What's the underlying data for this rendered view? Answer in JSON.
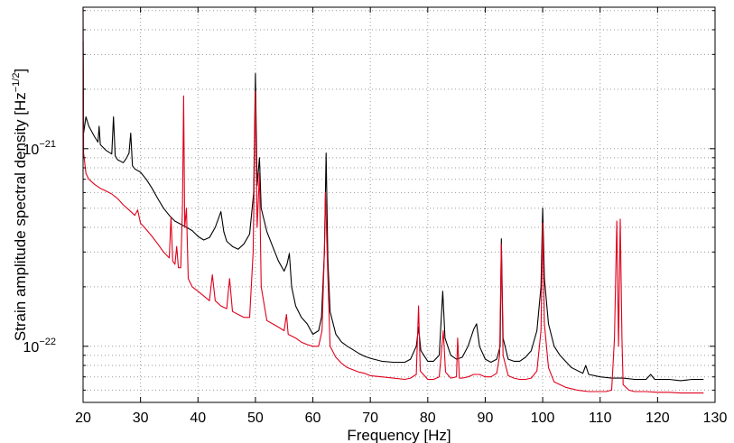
{
  "chart_data": {
    "type": "line",
    "title": "",
    "xlabel": "Frequency [Hz]",
    "ylabel_main": "Strain amplitude spectral density [Hz",
    "ylabel_exp": "−1/2",
    "ylabel_close": "]",
    "yscale": "log",
    "xlim": [
      20,
      130
    ],
    "ylim": [
      5.2e-23,
      5.2e-21
    ],
    "grid": true,
    "legend": "none",
    "x_ticks": [
      {
        "value": 20,
        "label": "20"
      },
      {
        "value": 30,
        "label": "30"
      },
      {
        "value": 40,
        "label": "40"
      },
      {
        "value": 50,
        "label": "50"
      },
      {
        "value": 60,
        "label": "60"
      },
      {
        "value": 70,
        "label": "70"
      },
      {
        "value": 80,
        "label": "80"
      },
      {
        "value": 90,
        "label": "90"
      },
      {
        "value": 100,
        "label": "100"
      },
      {
        "value": 110,
        "label": "110"
      },
      {
        "value": 120,
        "label": "120"
      },
      {
        "value": 130,
        "label": "130"
      }
    ],
    "y_ticks": [
      {
        "value": 1e-22,
        "base": "10",
        "exp": "−22"
      },
      {
        "value": 1e-21,
        "base": "10",
        "exp": "−21"
      }
    ],
    "series": [
      {
        "color": "#000000",
        "points": [
          [
            20.0,
            3.5e-21
          ],
          [
            20.1,
            1.2e-21
          ],
          [
            20.5,
            1.45e-21
          ],
          [
            21,
            1.3e-21
          ],
          [
            22,
            1.15e-21
          ],
          [
            22.6,
            1.08e-21
          ],
          [
            22.8,
            1.3e-21
          ],
          [
            23,
            1.05e-21
          ],
          [
            24,
            9.8e-22
          ],
          [
            25,
            9.4e-22
          ],
          [
            25.3,
            1.45e-21
          ],
          [
            25.6,
            9.2e-22
          ],
          [
            26,
            8.8e-22
          ],
          [
            27,
            8.5e-22
          ],
          [
            27.5,
            8.9e-22
          ],
          [
            28,
            9.5e-22
          ],
          [
            28.3,
            1.2e-21
          ],
          [
            28.6,
            8.2e-22
          ],
          [
            29,
            7.9e-22
          ],
          [
            30,
            7.6e-22
          ],
          [
            31,
            7e-22
          ],
          [
            32,
            6.3e-22
          ],
          [
            33,
            5.6e-22
          ],
          [
            34,
            5e-22
          ],
          [
            35,
            4.6e-22
          ],
          [
            36,
            4.3e-22
          ],
          [
            37,
            4.15e-22
          ],
          [
            38,
            4e-22
          ],
          [
            39,
            3.85e-22
          ],
          [
            40,
            3.6e-22
          ],
          [
            41,
            3.45e-22
          ],
          [
            42,
            3.55e-22
          ],
          [
            43,
            4e-22
          ],
          [
            44,
            4.8e-22
          ],
          [
            44.5,
            3.8e-22
          ],
          [
            45,
            3.4e-22
          ],
          [
            46,
            3.2e-22
          ],
          [
            47,
            3.1e-22
          ],
          [
            48,
            3.3e-22
          ],
          [
            49,
            3.7e-22
          ],
          [
            49.7,
            6e-22
          ],
          [
            50.0,
            2.4e-21
          ],
          [
            50.3,
            6.5e-22
          ],
          [
            50.7,
            9e-22
          ],
          [
            51,
            5e-22
          ],
          [
            52,
            3.8e-22
          ],
          [
            53,
            3.2e-22
          ],
          [
            54,
            2.7e-22
          ],
          [
            55,
            2.4e-22
          ],
          [
            55.5,
            2.6e-22
          ],
          [
            55.9,
            2.95e-22
          ],
          [
            56.3,
            2e-22
          ],
          [
            57,
            1.6e-22
          ],
          [
            58,
            1.4e-22
          ],
          [
            59,
            1.3e-22
          ],
          [
            60,
            1.15e-22
          ],
          [
            61,
            1.2e-22
          ],
          [
            61.5,
            1.4e-22
          ],
          [
            62.0,
            3e-22
          ],
          [
            62.3,
            9.5e-22
          ],
          [
            62.6,
            2.8e-22
          ],
          [
            63,
            1.5e-22
          ],
          [
            64,
            1.15e-22
          ],
          [
            65,
            1.05e-22
          ],
          [
            66,
            1e-22
          ],
          [
            67,
            9.6e-23
          ],
          [
            68,
            9.2e-23
          ],
          [
            69,
            8.9e-23
          ],
          [
            70,
            8.7e-23
          ],
          [
            72,
            8.4e-23
          ],
          [
            74,
            8.3e-23
          ],
          [
            76,
            8.3e-23
          ],
          [
            77,
            8.6e-23
          ],
          [
            78,
            1e-22
          ],
          [
            78.4,
            1.25e-22
          ],
          [
            78.8,
            9.5e-23
          ],
          [
            80,
            8.4e-23
          ],
          [
            81,
            8.4e-23
          ],
          [
            82,
            9e-23
          ],
          [
            82.6,
            1.9e-22
          ],
          [
            83.0,
            1.1e-22
          ],
          [
            84,
            9e-23
          ],
          [
            85,
            8.6e-23
          ],
          [
            86,
            8.8e-23
          ],
          [
            87,
            1e-22
          ],
          [
            88,
            1.22e-22
          ],
          [
            88.5,
            1.3e-22
          ],
          [
            89,
            1e-22
          ],
          [
            90,
            8.6e-23
          ],
          [
            91,
            8.3e-23
          ],
          [
            92,
            8.6e-23
          ],
          [
            92.6,
            1e-22
          ],
          [
            92.8,
            3.5e-22
          ],
          [
            93.1,
            1.1e-22
          ],
          [
            94,
            8.6e-23
          ],
          [
            95,
            8.4e-23
          ],
          [
            96,
            8.4e-23
          ],
          [
            97,
            8.8e-23
          ],
          [
            98,
            9.5e-23
          ],
          [
            99,
            1.2e-22
          ],
          [
            99.7,
            2e-22
          ],
          [
            100.0,
            5e-22
          ],
          [
            100.3,
            2.2e-22
          ],
          [
            101,
            1.3e-22
          ],
          [
            102,
            1e-22
          ],
          [
            103,
            9e-23
          ],
          [
            105,
            7.8e-23
          ],
          [
            107,
            7.3e-23
          ],
          [
            107.5,
            8e-23
          ],
          [
            108,
            7.2e-23
          ],
          [
            110,
            7e-23
          ],
          [
            112,
            6.9e-23
          ],
          [
            114,
            6.9e-23
          ],
          [
            116,
            6.8e-23
          ],
          [
            118,
            6.8e-23
          ],
          [
            118.8,
            7.2e-23
          ],
          [
            119.5,
            6.8e-23
          ],
          [
            122,
            6.8e-23
          ],
          [
            124,
            6.7e-23
          ],
          [
            126,
            6.8e-23
          ],
          [
            128,
            6.8e-23
          ]
        ]
      },
      {
        "color": "#e0001b",
        "points": [
          [
            20.0,
            5.2e-21
          ],
          [
            20.1,
            9.5e-22
          ],
          [
            20.5,
            7.5e-22
          ],
          [
            21,
            7e-22
          ],
          [
            22,
            6.6e-22
          ],
          [
            23,
            6.3e-22
          ],
          [
            24,
            6.1e-22
          ],
          [
            25,
            5.9e-22
          ],
          [
            26,
            5.6e-22
          ],
          [
            27,
            5.2e-22
          ],
          [
            28,
            4.9e-22
          ],
          [
            29,
            4.6e-22
          ],
          [
            29.5,
            4.9e-22
          ],
          [
            30,
            4.2e-22
          ],
          [
            31,
            3.9e-22
          ],
          [
            32,
            3.6e-22
          ],
          [
            33,
            3.3e-22
          ],
          [
            34,
            3e-22
          ],
          [
            35,
            2.8e-22
          ],
          [
            35.3,
            4.5e-22
          ],
          [
            35.6,
            2.7e-22
          ],
          [
            36,
            2.6e-22
          ],
          [
            36.3,
            3.2e-22
          ],
          [
            36.6,
            2.5e-22
          ],
          [
            37.0,
            2.5e-22
          ],
          [
            37.3,
            5e-22
          ],
          [
            37.5,
            1.85e-21
          ],
          [
            37.7,
            4e-22
          ],
          [
            38,
            5e-22
          ],
          [
            38.3,
            2.2e-22
          ],
          [
            39,
            2e-22
          ],
          [
            40,
            1.9e-22
          ],
          [
            41,
            1.8e-22
          ],
          [
            42,
            1.7e-22
          ],
          [
            42.5,
            2.3e-22
          ],
          [
            43,
            1.7e-22
          ],
          [
            44,
            1.6e-22
          ],
          [
            45,
            1.55e-22
          ],
          [
            45.5,
            2.2e-22
          ],
          [
            46,
            1.5e-22
          ],
          [
            47,
            1.45e-22
          ],
          [
            48,
            1.4e-22
          ],
          [
            49,
            1.4e-22
          ],
          [
            49.6,
            3e-22
          ],
          [
            50.0,
            1.95e-21
          ],
          [
            50.3,
            4e-22
          ],
          [
            50.7,
            7.5e-22
          ],
          [
            51,
            2e-22
          ],
          [
            52,
            1.35e-22
          ],
          [
            53,
            1.3e-22
          ],
          [
            54,
            1.25e-22
          ],
          [
            55,
            1.2e-22
          ],
          [
            55.4,
            1.45e-22
          ],
          [
            55.7,
            1.15e-22
          ],
          [
            57,
            1.1e-22
          ],
          [
            58,
            1.05e-22
          ],
          [
            59,
            1.02e-22
          ],
          [
            60,
            1e-22
          ],
          [
            61,
            1e-22
          ],
          [
            61.6,
            1.2e-22
          ],
          [
            62.0,
            3e-22
          ],
          [
            62.2,
            6e-22
          ],
          [
            62.5,
            2.8e-22
          ],
          [
            63,
            1e-22
          ],
          [
            64,
            8.8e-23
          ],
          [
            65,
            8.2e-23
          ],
          [
            66,
            7.8e-23
          ],
          [
            67,
            7.6e-23
          ],
          [
            68,
            7.4e-23
          ],
          [
            69,
            7.3e-23
          ],
          [
            70,
            7.1e-23
          ],
          [
            72,
            7e-23
          ],
          [
            74,
            6.9e-23
          ],
          [
            76,
            6.8e-23
          ],
          [
            77,
            6.9e-23
          ],
          [
            78,
            7.2e-23
          ],
          [
            78.4,
            1.6e-22
          ],
          [
            78.7,
            7.5e-23
          ],
          [
            80,
            6.8e-23
          ],
          [
            81,
            6.8e-23
          ],
          [
            82,
            7e-23
          ],
          [
            82.7,
            1.2e-22
          ],
          [
            83.1,
            7.4e-23
          ],
          [
            84,
            6.9e-23
          ],
          [
            85,
            7e-23
          ],
          [
            85.2,
            1.1e-22
          ],
          [
            85.5,
            6.9e-23
          ],
          [
            86,
            6.9e-23
          ],
          [
            87,
            7e-23
          ],
          [
            88,
            7.2e-23
          ],
          [
            89,
            7.2e-23
          ],
          [
            90,
            7e-23
          ],
          [
            91,
            7e-23
          ],
          [
            92,
            7.3e-23
          ],
          [
            92.5,
            9e-23
          ],
          [
            92.8,
            3.3e-22
          ],
          [
            93.1,
            9e-23
          ],
          [
            94,
            7.1e-23
          ],
          [
            95,
            6.9e-23
          ],
          [
            96,
            6.8e-23
          ],
          [
            97,
            6.8e-23
          ],
          [
            98,
            6.9e-23
          ],
          [
            99,
            7.5e-23
          ],
          [
            99.7,
            1.2e-22
          ],
          [
            100.0,
            4.2e-22
          ],
          [
            100.3,
            1.3e-22
          ],
          [
            101,
            7.8e-23
          ],
          [
            102,
            6.6e-23
          ],
          [
            104,
            6.2e-23
          ],
          [
            106,
            6e-23
          ],
          [
            108,
            5.9e-23
          ],
          [
            110,
            5.9e-23
          ],
          [
            111,
            5.9e-23
          ],
          [
            112,
            6e-23
          ],
          [
            112.5,
            1.1e-22
          ],
          [
            112.9,
            4.3e-22
          ],
          [
            113.2,
            1e-22
          ],
          [
            113.5,
            4.4e-22
          ],
          [
            113.8,
            1.1e-22
          ],
          [
            114,
            6.4e-23
          ],
          [
            115,
            6e-23
          ],
          [
            116,
            5.9e-23
          ],
          [
            118,
            5.9e-23
          ],
          [
            120,
            5.85e-23
          ],
          [
            122,
            5.85e-23
          ],
          [
            124,
            5.8e-23
          ],
          [
            126,
            5.8e-23
          ],
          [
            128,
            5.8e-23
          ]
        ]
      }
    ]
  }
}
